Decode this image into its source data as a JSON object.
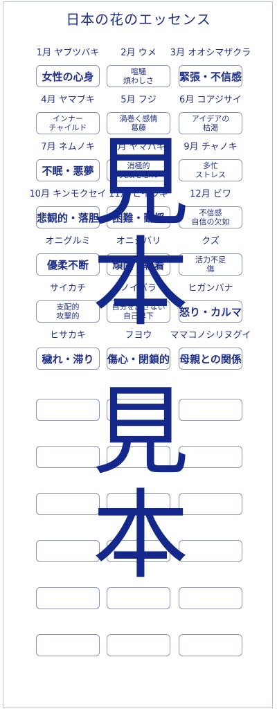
{
  "title": "日本の花のエッセンス",
  "watermark": [
    "見",
    "本",
    "見",
    "本"
  ],
  "rows": [
    [
      {
        "label": "1月 ヤブツバキ",
        "box": "女性の心身",
        "style": "big"
      },
      {
        "label": "2月 ウメ",
        "box": "喧騒\n煩わしさ",
        "style": "two"
      },
      {
        "label": "3月 オオシマザクラ",
        "box": "緊張・不信感",
        "style": "big"
      }
    ],
    [
      {
        "label": "4月 ヤマブキ",
        "box": "インナー\nチャイルド",
        "style": "two"
      },
      {
        "label": "5月 フジ",
        "box": "渦巻く感情\n葛藤",
        "style": "two"
      },
      {
        "label": "6月 コアジサイ",
        "box": "アイデアの\n枯渇",
        "style": "two"
      }
    ],
    [
      {
        "label": "7月 ネムノキ",
        "box": "不眠・悪夢",
        "style": "big"
      },
      {
        "label": "8月 ヤマハギ",
        "box": "消極的\n失敗を恐れ",
        "style": "two"
      },
      {
        "label": "9月 チャノキ",
        "box": "多忙\nストレス",
        "style": "two"
      }
    ],
    [
      {
        "label": "10月 キンモクセイ",
        "box": "悲観的・落胆",
        "style": "big"
      },
      {
        "label": "11月 ヒイラギ",
        "box": "困難・動揺",
        "style": "big"
      },
      {
        "label": "12月 ビワ",
        "box": "不信感\n自信の欠如",
        "style": "two"
      }
    ],
    [
      {
        "label": "オニグルミ",
        "box": "優柔不断",
        "style": "big"
      },
      {
        "label": "オニシバリ",
        "box": "頑固・執着",
        "style": "big"
      },
      {
        "label": "クズ",
        "box": "活力不足\n傷",
        "style": "two"
      }
    ],
    [
      {
        "label": "サイカチ",
        "box": "支配的\n攻撃的",
        "style": "two"
      },
      {
        "label": "ノイバラ",
        "box": "自分を出さない\n自己卑下",
        "style": "two"
      },
      {
        "label": "ヒガンバナ",
        "box": "怒り・カルマ",
        "style": "big"
      }
    ],
    [
      {
        "label": "ヒサカキ",
        "box": "穢れ・滞り",
        "style": "big"
      },
      {
        "label": "フヨウ",
        "box": "傷心・閉鎖的",
        "style": "big"
      },
      {
        "label": "ママコノシリヌグイ",
        "box": "母親との関係",
        "style": "big"
      }
    ]
  ],
  "empty_rows": 6
}
